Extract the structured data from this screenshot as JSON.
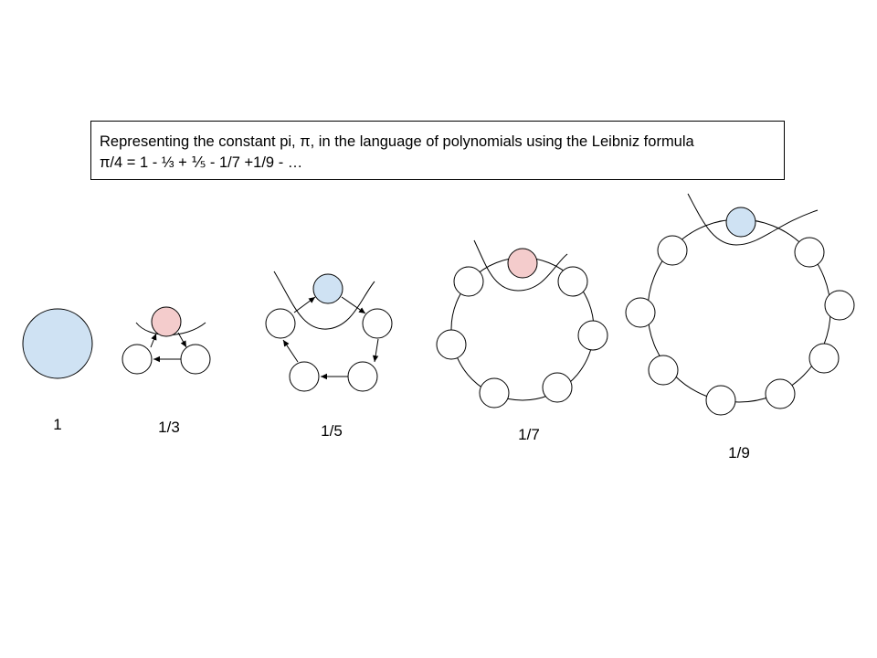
{
  "caption": {
    "line1": "Representing the constant pi, π, in the language of polynomials using the Leibniz formula",
    "line2": "π/4 = 1 - ⅓ + ⅕ - 1/7 +1/9 - …"
  },
  "terms": [
    {
      "label": "1",
      "nodes": 1,
      "highlight_color": "#cfe2f3"
    },
    {
      "label": "1/3",
      "nodes": 3,
      "highlight_color": "#f4cccc"
    },
    {
      "label": "1/5",
      "nodes": 5,
      "highlight_color": "#cfe2f3"
    },
    {
      "label": "1/7",
      "nodes": 7,
      "highlight_color": "#f4cccc"
    },
    {
      "label": "1/9",
      "nodes": 9,
      "highlight_color": "#cfe2f3"
    }
  ],
  "colors": {
    "positive_term": "#cfe2f3",
    "negative_term": "#f4cccc",
    "node_fill": "#ffffff",
    "stroke": "#000000"
  }
}
